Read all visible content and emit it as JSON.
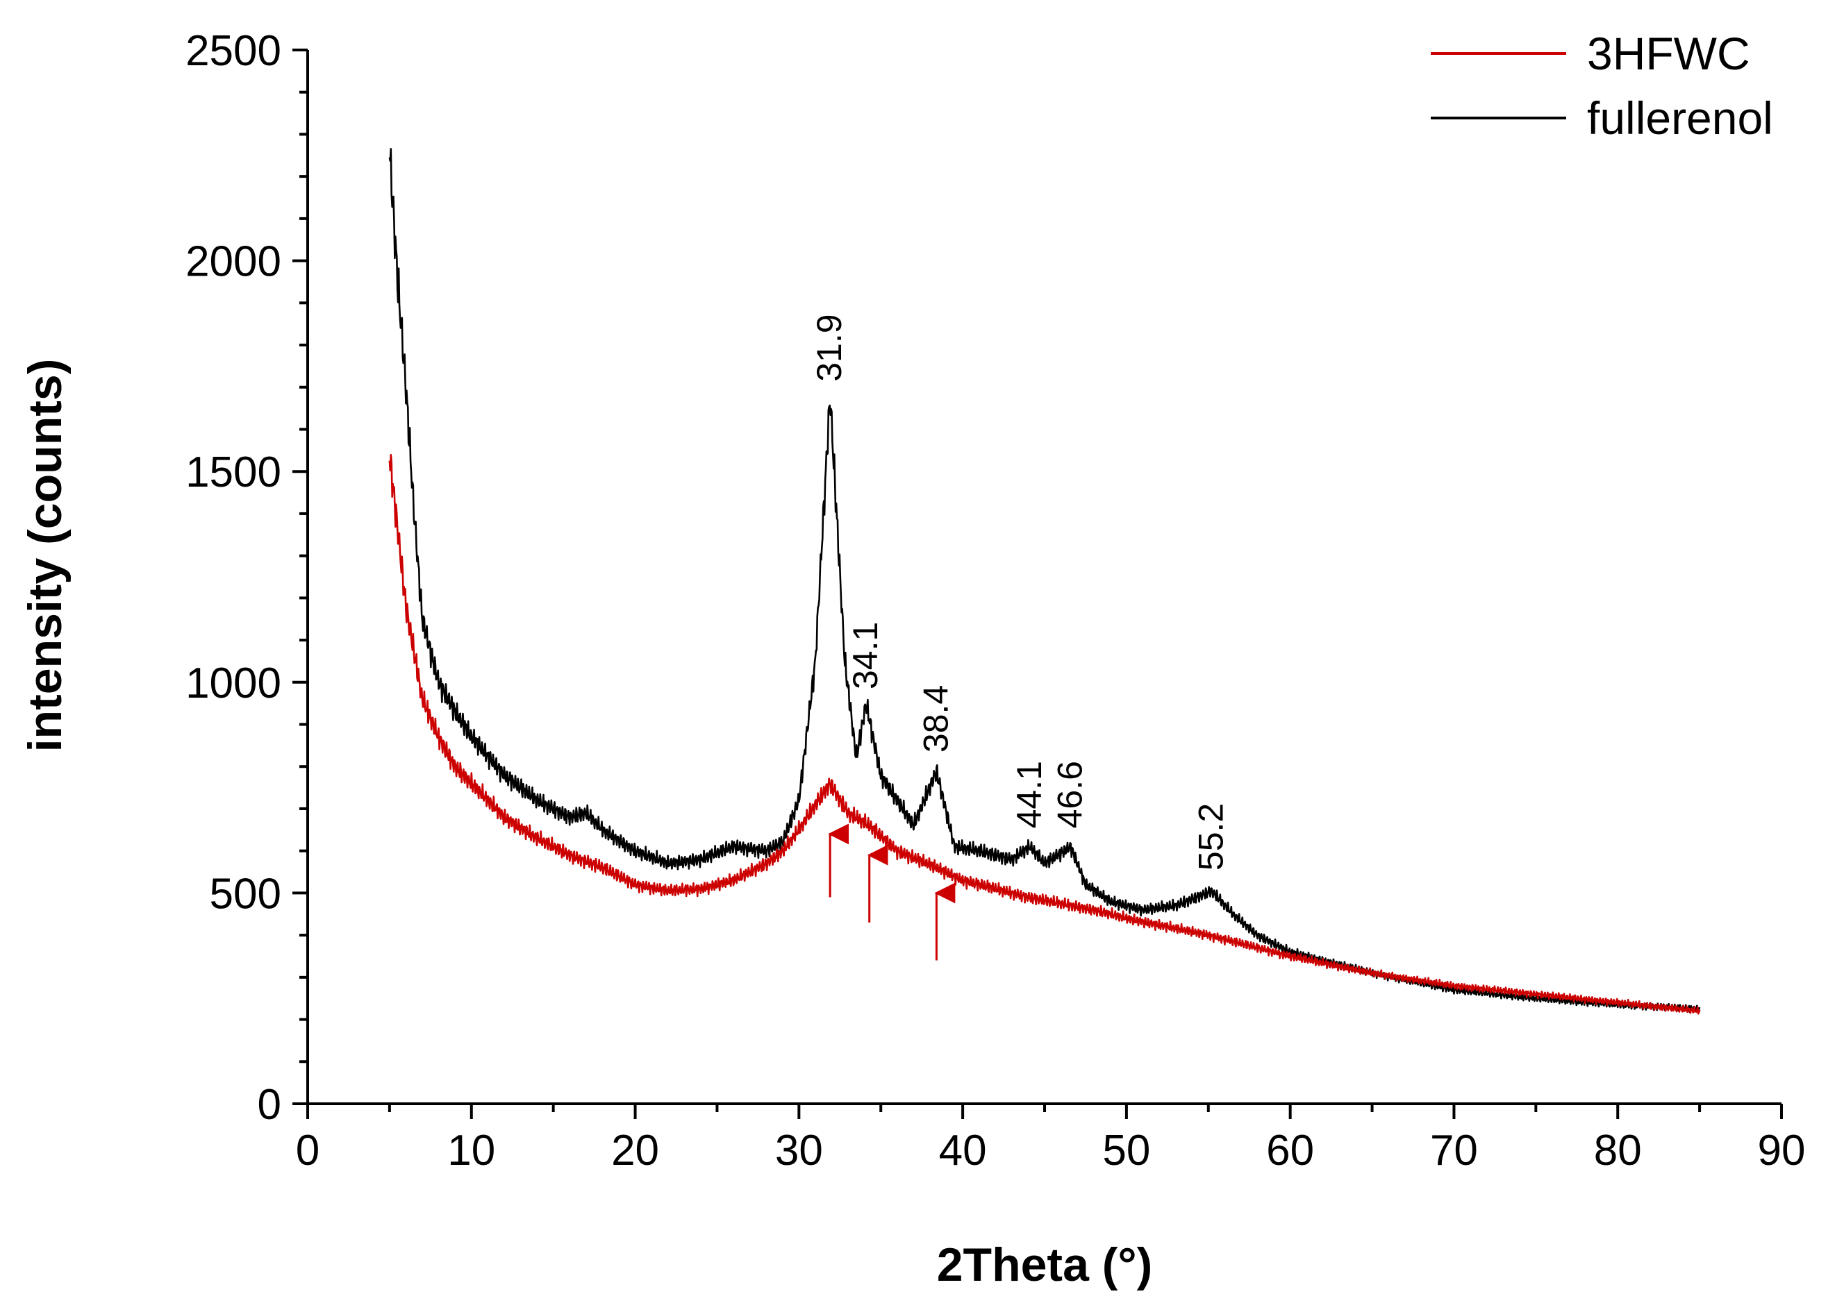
{
  "chart_data": {
    "type": "line",
    "title": "",
    "xlabel": "2Theta (°)",
    "ylabel": "intensity (counts)",
    "xlim": [
      0,
      90
    ],
    "ylim": [
      0,
      2500
    ],
    "x_ticks": [
      0,
      10,
      20,
      30,
      40,
      50,
      60,
      70,
      80,
      90
    ],
    "y_ticks": [
      0,
      500,
      1000,
      1500,
      2000,
      2500
    ],
    "x_tick_labels": [
      "0",
      "10",
      "20",
      "30",
      "40",
      "50",
      "60",
      "70",
      "80",
      "90"
    ],
    "y_tick_labels": [
      "0",
      "500",
      "1000",
      "1500",
      "2000",
      "2500"
    ],
    "grid": false,
    "legend_position": "top-right",
    "series": [
      {
        "name": "3HFWC",
        "color": "#cc0000",
        "x": [
          5,
          6,
          7,
          8,
          9,
          10,
          12,
          14,
          16,
          18,
          20,
          22,
          24,
          26,
          28,
          29,
          30,
          31,
          31.9,
          33,
          34.3,
          36,
          38.4,
          40,
          44,
          48,
          50,
          55,
          60,
          65,
          70,
          75,
          80,
          85
        ],
        "y": [
          1540,
          1180,
          960,
          870,
          800,
          760,
          680,
          630,
          590,
          560,
          520,
          505,
          510,
          530,
          570,
          600,
          650,
          710,
          760,
          690,
          660,
          600,
          560,
          530,
          490,
          460,
          440,
          400,
          350,
          310,
          280,
          260,
          240,
          220
        ]
      },
      {
        "name": "fullerenol",
        "color": "#000000",
        "x": [
          5,
          5.5,
          6,
          6.5,
          7,
          8,
          9,
          10,
          12,
          14,
          16,
          17,
          18,
          20,
          22,
          24,
          26,
          28,
          29,
          30,
          31,
          31.9,
          32.8,
          33.5,
          34.1,
          35,
          36,
          37,
          38.4,
          39.5,
          41,
          43,
          44.1,
          45,
          46.6,
          47.5,
          49,
          51,
          53,
          55.2,
          56.5,
          58,
          60,
          65,
          70,
          75,
          80,
          85
        ],
        "y": [
          2260,
          1950,
          1700,
          1400,
          1150,
          1000,
          930,
          870,
          780,
          720,
          680,
          690,
          650,
          600,
          570,
          580,
          610,
          600,
          620,
          720,
          1050,
          1680,
          1050,
          820,
          950,
          780,
          720,
          660,
          790,
          610,
          600,
          580,
          610,
          570,
          610,
          520,
          480,
          460,
          470,
          505,
          450,
          400,
          360,
          310,
          270,
          250,
          235,
          225
        ]
      }
    ],
    "annotations": [
      {
        "text": "31.9",
        "x": 31.9,
        "y": 1700
      },
      {
        "text": "34.1",
        "x": 34.1,
        "y": 970
      },
      {
        "text": "38.4",
        "x": 38.4,
        "y": 820
      },
      {
        "text": "44.1",
        "x": 44.1,
        "y": 640
      },
      {
        "text": "46.6",
        "x": 46.6,
        "y": 640
      },
      {
        "text": "55.2",
        "x": 55.2,
        "y": 540
      }
    ],
    "arrows": [
      {
        "x": 31.9,
        "y_from": 490,
        "y_to": 640
      },
      {
        "x": 34.3,
        "y_from": 430,
        "y_to": 590
      },
      {
        "x": 38.4,
        "y_from": 340,
        "y_to": 500
      }
    ]
  }
}
